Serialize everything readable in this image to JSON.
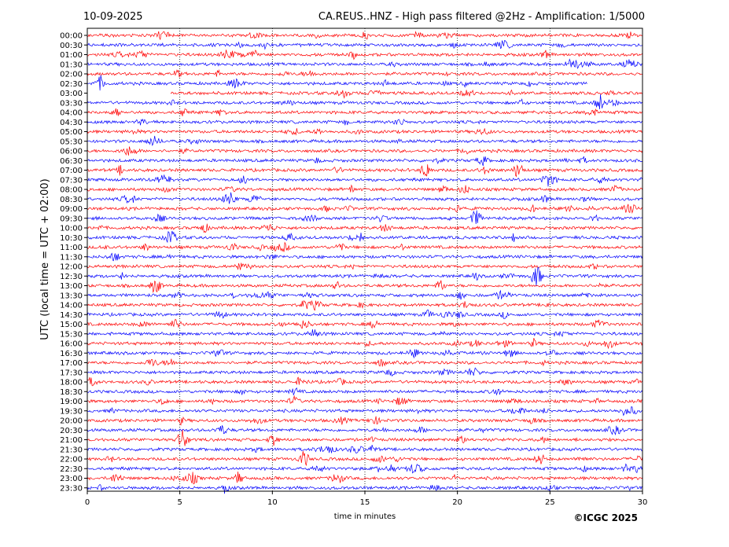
{
  "header": {
    "date": "10-09-2025",
    "title": "CA.REUS..HNZ - High pass filtered @2Hz - Amplification: 1/5000"
  },
  "footer": {
    "copyright": "©ICGC 2025"
  },
  "chart_data": {
    "type": "line",
    "subtype": "helicorder",
    "xlabel": "time in minutes",
    "ylabel": "UTC (local time = UTC + 02:00)",
    "xlim": [
      0,
      30
    ],
    "xticks": [
      0,
      5,
      10,
      15,
      20,
      25,
      30
    ],
    "grid": "vertical dotted lines at 5-minute intervals",
    "colors": {
      "trace_a": "#ff0000",
      "trace_b": "#0000ff"
    },
    "trace_color_order": "alternating red/blue starting with red at 00:00",
    "rows": [
      "00:00",
      "00:30",
      "01:00",
      "01:30",
      "02:00",
      "02:30",
      "03:00",
      "03:30",
      "04:00",
      "04:30",
      "05:00",
      "05:30",
      "06:00",
      "06:30",
      "07:00",
      "07:30",
      "08:00",
      "08:30",
      "09:00",
      "09:30",
      "10:00",
      "10:30",
      "11:00",
      "11:30",
      "12:00",
      "12:30",
      "13:00",
      "13:30",
      "14:00",
      "14:30",
      "15:00",
      "15:30",
      "16:00",
      "16:30",
      "17:00",
      "17:30",
      "18:00",
      "18:30",
      "19:00",
      "19:30",
      "20:00",
      "20:30",
      "21:00",
      "21:30",
      "22:00",
      "22:30",
      "23:00",
      "23:30"
    ],
    "data_gap": {
      "start_row": "02:30",
      "start_minute": 27,
      "end_row": "03:00",
      "end_minute": 4.5
    },
    "notable_events": [
      {
        "row": "07:00",
        "minute": 18.3
      },
      {
        "row": "07:00",
        "minute": 23.3
      },
      {
        "row": "13:00",
        "minute": 3.7
      },
      {
        "row": "09:30",
        "minute": 21.0
      },
      {
        "row": "12:30",
        "minute": 24.3
      },
      {
        "row": "21:00",
        "minute": 5.2
      },
      {
        "row": "22:00",
        "minute": 11.7
      }
    ]
  }
}
